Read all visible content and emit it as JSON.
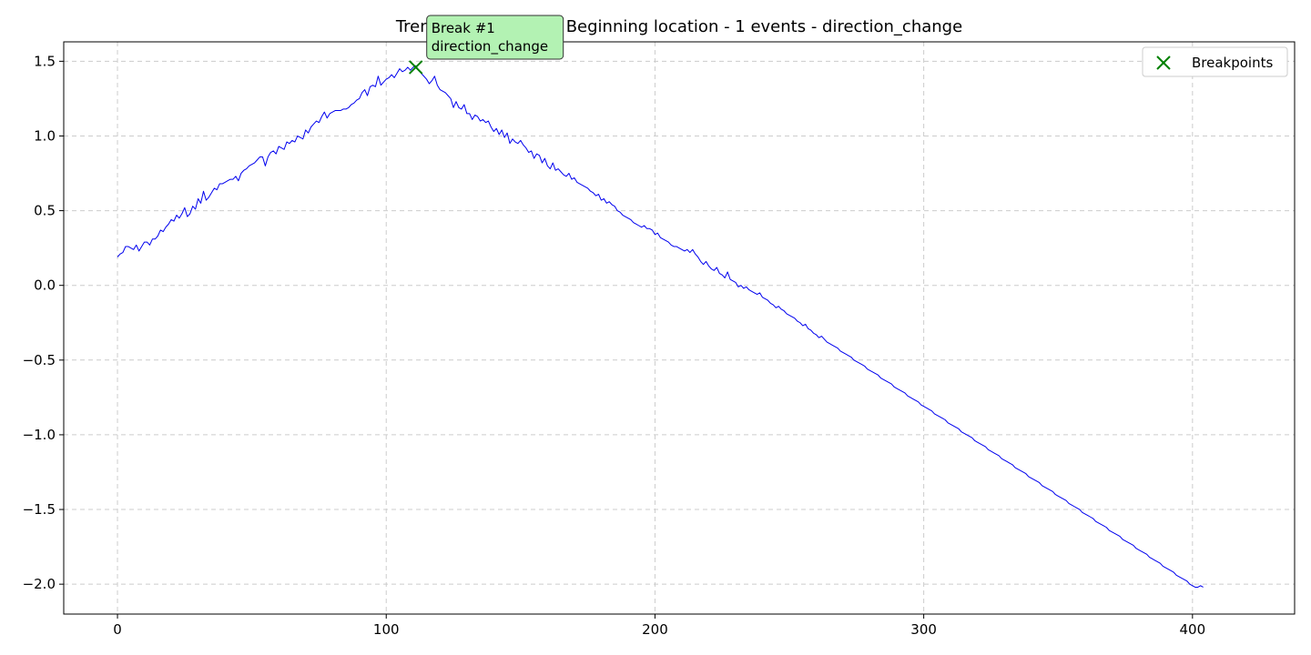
{
  "chart_data": {
    "type": "line",
    "title": "Trend Shift (single) - Beginning location - 1 events - direction_change",
    "xlabel": "",
    "ylabel": "",
    "xlim": [
      -20,
      438
    ],
    "ylim": [
      -2.2,
      1.63
    ],
    "grid": true,
    "legend_position": "top-right",
    "x_ticks": [
      0,
      100,
      200,
      300,
      400
    ],
    "x_tick_labels": [
      "0",
      "100",
      "200",
      "300",
      "400"
    ],
    "y_ticks": [
      1.5,
      1.0,
      0.5,
      0.0,
      -0.5,
      -1.0,
      -1.5,
      -2.0
    ],
    "y_tick_labels": [
      "1.5",
      "1.0",
      "0.5",
      "0.0",
      "−0.5",
      "−1.0",
      "−1.5",
      "−2.0"
    ],
    "series": [
      {
        "name": "",
        "color": "#0000ee",
        "x_start": 0,
        "x_step": 1,
        "values": [
          0.19,
          0.21,
          0.22,
          0.26,
          0.26,
          0.25,
          0.24,
          0.27,
          0.23,
          0.26,
          0.29,
          0.29,
          0.27,
          0.31,
          0.31,
          0.33,
          0.37,
          0.36,
          0.39,
          0.41,
          0.44,
          0.43,
          0.47,
          0.45,
          0.48,
          0.52,
          0.46,
          0.48,
          0.53,
          0.51,
          0.58,
          0.55,
          0.63,
          0.57,
          0.59,
          0.62,
          0.65,
          0.64,
          0.68,
          0.68,
          0.69,
          0.7,
          0.71,
          0.71,
          0.73,
          0.7,
          0.75,
          0.77,
          0.78,
          0.8,
          0.81,
          0.82,
          0.84,
          0.86,
          0.86,
          0.8,
          0.86,
          0.89,
          0.9,
          0.88,
          0.93,
          0.92,
          0.91,
          0.96,
          0.95,
          0.97,
          0.96,
          1.0,
          0.99,
          0.98,
          1.04,
          1.02,
          1.06,
          1.08,
          1.1,
          1.09,
          1.13,
          1.16,
          1.12,
          1.15,
          1.16,
          1.17,
          1.17,
          1.17,
          1.18,
          1.18,
          1.19,
          1.21,
          1.22,
          1.24,
          1.25,
          1.29,
          1.31,
          1.27,
          1.33,
          1.34,
          1.33,
          1.4,
          1.34,
          1.36,
          1.38,
          1.39,
          1.41,
          1.39,
          1.42,
          1.45,
          1.43,
          1.44,
          1.46,
          1.44,
          1.46,
          1.47,
          1.44,
          1.42,
          1.4,
          1.38,
          1.35,
          1.37,
          1.4,
          1.34,
          1.31,
          1.3,
          1.29,
          1.27,
          1.25,
          1.19,
          1.23,
          1.19,
          1.18,
          1.21,
          1.15,
          1.15,
          1.11,
          1.14,
          1.13,
          1.1,
          1.11,
          1.09,
          1.1,
          1.06,
          1.03,
          1.05,
          1.01,
          1.04,
          0.99,
          1.02,
          0.95,
          0.98,
          0.96,
          0.95,
          0.97,
          0.94,
          0.92,
          0.89,
          0.9,
          0.85,
          0.88,
          0.87,
          0.82,
          0.85,
          0.8,
          0.78,
          0.82,
          0.77,
          0.78,
          0.76,
          0.74,
          0.73,
          0.75,
          0.71,
          0.72,
          0.69,
          0.68,
          0.67,
          0.66,
          0.65,
          0.63,
          0.62,
          0.6,
          0.61,
          0.57,
          0.58,
          0.55,
          0.56,
          0.54,
          0.53,
          0.5,
          0.49,
          0.47,
          0.46,
          0.45,
          0.44,
          0.42,
          0.41,
          0.4,
          0.39,
          0.4,
          0.38,
          0.38,
          0.37,
          0.34,
          0.35,
          0.32,
          0.31,
          0.3,
          0.29,
          0.27,
          0.26,
          0.26,
          0.25,
          0.24,
          0.23,
          0.24,
          0.22,
          0.24,
          0.21,
          0.19,
          0.16,
          0.14,
          0.16,
          0.13,
          0.11,
          0.1,
          0.12,
          0.08,
          0.07,
          0.05,
          0.09,
          0.04,
          0.03,
          0.02,
          -0.01,
          0.0,
          -0.02,
          -0.01,
          -0.03,
          -0.04,
          -0.05,
          -0.06,
          -0.05,
          -0.08,
          -0.09,
          -0.1,
          -0.12,
          -0.13,
          -0.15,
          -0.14,
          -0.16,
          -0.17,
          -0.19,
          -0.2,
          -0.21,
          -0.22,
          -0.24,
          -0.25,
          -0.27,
          -0.26,
          -0.29,
          -0.3,
          -0.32,
          -0.33,
          -0.35,
          -0.34,
          -0.36,
          -0.38,
          -0.39,
          -0.4,
          -0.41,
          -0.42,
          -0.44,
          -0.45,
          -0.46,
          -0.47,
          -0.48,
          -0.5,
          -0.51,
          -0.52,
          -0.53,
          -0.54,
          -0.56,
          -0.57,
          -0.58,
          -0.59,
          -0.6,
          -0.62,
          -0.63,
          -0.64,
          -0.65,
          -0.66,
          -0.68,
          -0.69,
          -0.7,
          -0.71,
          -0.72,
          -0.74,
          -0.75,
          -0.76,
          -0.77,
          -0.78,
          -0.8,
          -0.81,
          -0.82,
          -0.83,
          -0.84,
          -0.86,
          -0.87,
          -0.88,
          -0.89,
          -0.9,
          -0.92,
          -0.93,
          -0.94,
          -0.95,
          -0.96,
          -0.98,
          -0.99,
          -1.0,
          -1.01,
          -1.02,
          -1.04,
          -1.05,
          -1.06,
          -1.07,
          -1.08,
          -1.1,
          -1.11,
          -1.12,
          -1.13,
          -1.14,
          -1.16,
          -1.17,
          -1.18,
          -1.19,
          -1.2,
          -1.22,
          -1.23,
          -1.24,
          -1.25,
          -1.26,
          -1.28,
          -1.29,
          -1.3,
          -1.31,
          -1.32,
          -1.34,
          -1.35,
          -1.36,
          -1.37,
          -1.38,
          -1.4,
          -1.41,
          -1.42,
          -1.43,
          -1.44,
          -1.46,
          -1.47,
          -1.48,
          -1.49,
          -1.5,
          -1.52,
          -1.53,
          -1.54,
          -1.55,
          -1.56,
          -1.58,
          -1.59,
          -1.6,
          -1.61,
          -1.62,
          -1.64,
          -1.65,
          -1.66,
          -1.67,
          -1.68,
          -1.7,
          -1.71,
          -1.72,
          -1.73,
          -1.74,
          -1.76,
          -1.77,
          -1.78,
          -1.79,
          -1.8,
          -1.82,
          -1.83,
          -1.84,
          -1.85,
          -1.86,
          -1.88,
          -1.89,
          -1.9,
          -1.91,
          -1.92,
          -1.94,
          -1.95,
          -1.96,
          -1.97,
          -1.98,
          -2.0,
          -2.01,
          -2.02,
          -2.02,
          -2.01,
          -2.02
        ]
      }
    ],
    "breakpoints": [
      {
        "x": 111,
        "y": 1.46,
        "label_line1": "Break #1",
        "label_line2": "direction_change"
      }
    ],
    "legend": [
      {
        "label": "Breakpoints",
        "marker": "x",
        "color": "#008000"
      }
    ],
    "colors": {
      "line": "#0000ee",
      "breakpoint": "#008000",
      "annotation_fill": "#b3f2b3",
      "grid": "#cccccc"
    }
  }
}
